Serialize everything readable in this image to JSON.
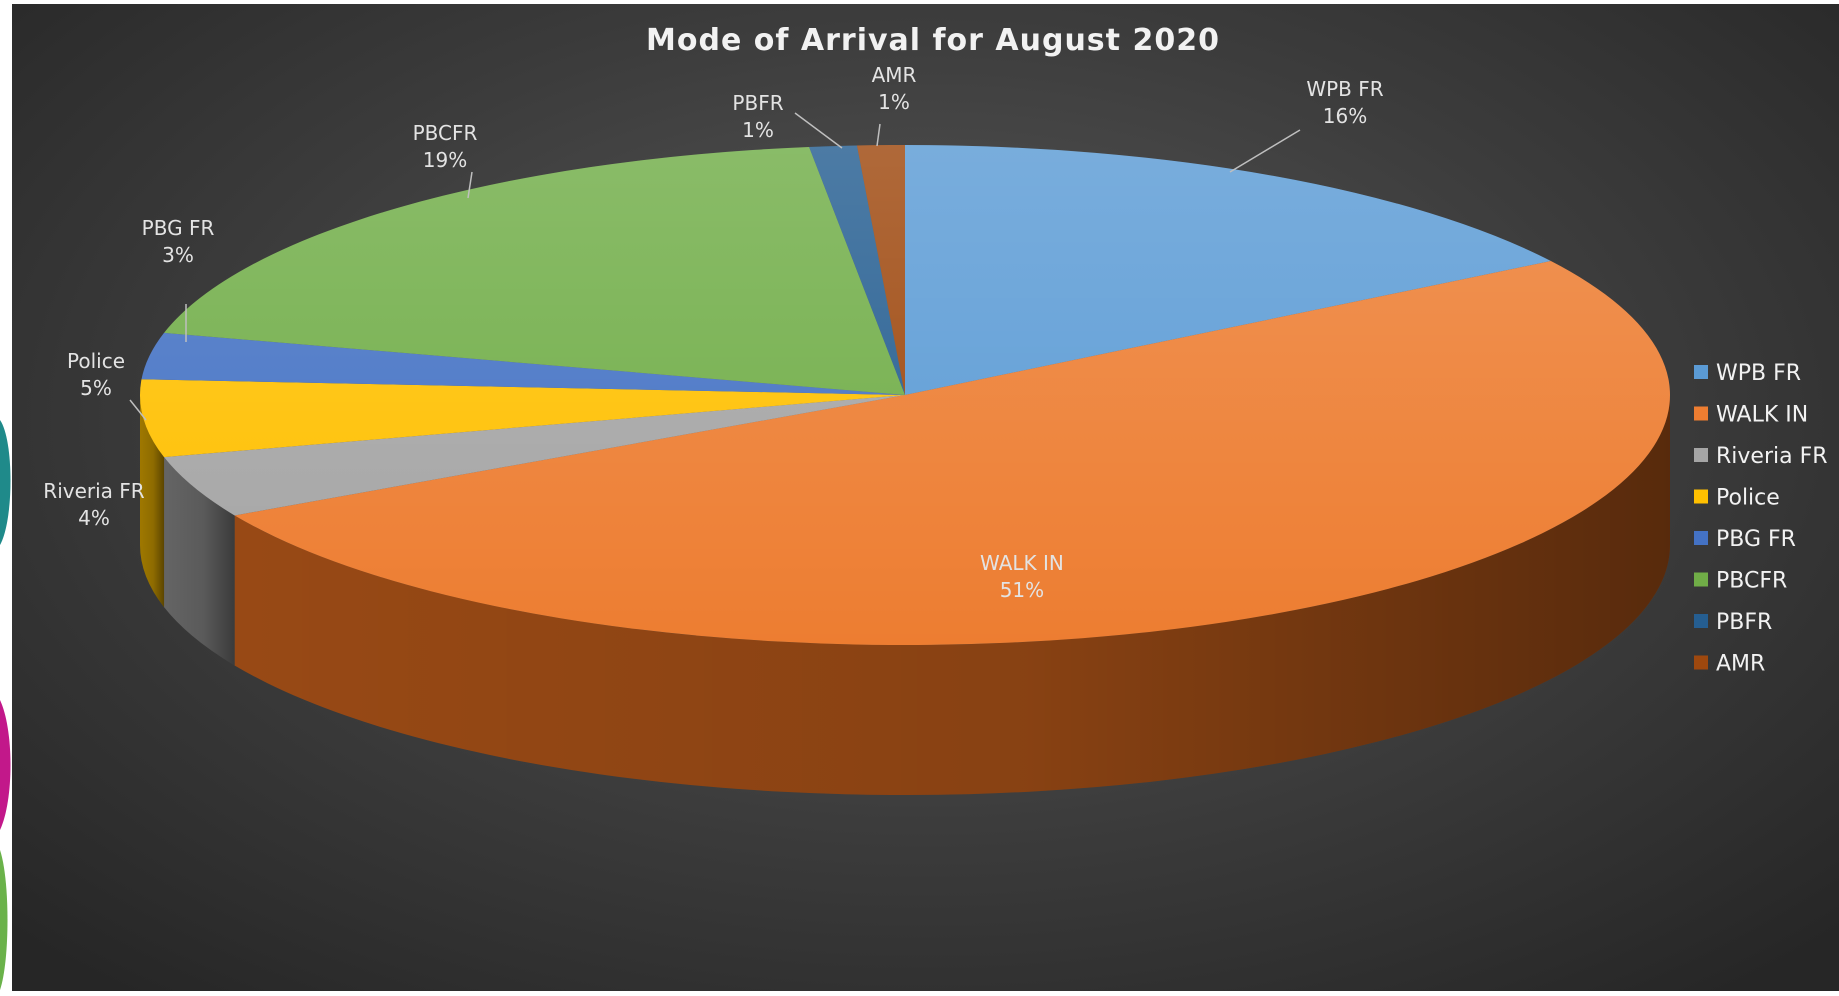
{
  "chart_data": {
    "type": "pie",
    "title": "Mode of Arrival for August 2020",
    "legend_position": "right",
    "start_angle_deg": -90,
    "slices": [
      {
        "label": "WPB FR",
        "value": 16,
        "display": "16%",
        "color": "#5b9bd5",
        "side": "#2f5f8c"
      },
      {
        "label": "WALK IN",
        "value": 51,
        "display": "51%",
        "color": "#ed7d31",
        "side": "#a04d16"
      },
      {
        "label": "Riveria FR",
        "value": 4,
        "display": "4%",
        "color": "#a5a5a5",
        "side": "#6a6a6a"
      },
      {
        "label": "Police",
        "value": 5,
        "display": "5%",
        "color": "#ffc000",
        "side": "#a77e00"
      },
      {
        "label": "PBG FR",
        "value": 3,
        "display": "3%",
        "color": "#4472c4",
        "side": "#2a4a82"
      },
      {
        "label": "PBCFR",
        "value": 19,
        "display": "19%",
        "color": "#70ad47",
        "side": "#46702a"
      },
      {
        "label": "PBFR",
        "value": 1,
        "display": "1%",
        "color": "#255e91",
        "side": "#163a5a"
      },
      {
        "label": "AMR",
        "value": 1,
        "display": "1%",
        "color": "#9e480e",
        "side": "#642c08"
      }
    ]
  },
  "decor_colors": [
    "#1f8a8a",
    "#c2188a",
    "#6ab24a"
  ]
}
